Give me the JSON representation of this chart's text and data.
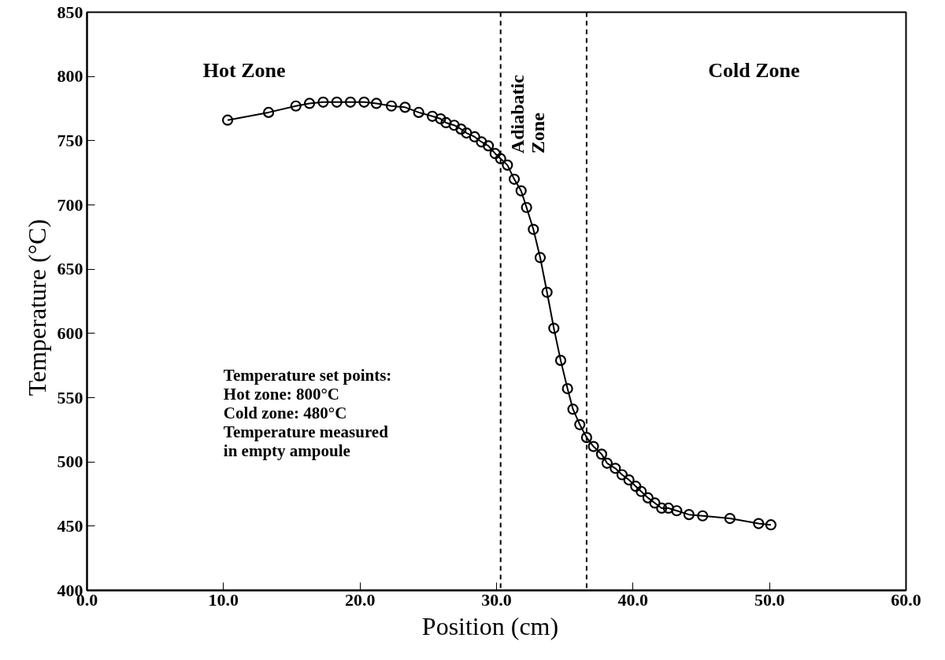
{
  "chart_data": {
    "type": "line",
    "xlabel": "Position   (cm)",
    "ylabel": "Temperature   (°C)",
    "x": [
      10.3,
      13.3,
      15.3,
      16.3,
      17.3,
      18.3,
      19.3,
      20.3,
      21.2,
      22.3,
      23.3,
      24.3,
      25.3,
      25.9,
      26.3,
      26.9,
      27.4,
      27.8,
      28.4,
      28.9,
      29.4,
      29.9,
      30.3,
      30.8,
      31.3,
      31.8,
      32.2,
      32.7,
      33.2,
      33.7,
      34.2,
      34.7,
      35.2,
      35.6,
      36.1,
      36.6,
      37.1,
      37.7,
      38.1,
      38.7,
      39.2,
      39.7,
      40.2,
      40.6,
      41.1,
      41.6,
      42.1,
      42.6,
      43.2,
      44.1,
      45.1,
      47.1,
      49.2,
      50.1
    ],
    "series": [
      {
        "color": "#000000",
        "values": [
          766,
          772,
          777,
          779,
          780,
          780,
          780,
          780,
          779,
          777,
          776,
          772,
          769,
          767,
          764,
          762,
          759,
          756,
          753,
          749,
          746,
          740,
          736,
          731,
          720,
          711,
          698,
          681,
          659,
          632,
          604,
          579,
          557,
          541,
          529,
          519,
          512,
          506,
          499,
          495,
          490,
          486,
          481,
          477,
          472,
          468,
          464,
          464,
          462,
          459,
          458,
          456,
          452,
          451
        ]
      }
    ],
    "marker": "circle",
    "line_style": "solid",
    "grid": false,
    "xlim": [
      0,
      60
    ],
    "ylim": [
      400,
      850
    ],
    "xticks": [
      {
        "value": 0,
        "label": "0.0"
      },
      {
        "value": 10,
        "label": "10.0"
      },
      {
        "value": 20,
        "label": "20.0"
      },
      {
        "value": 30,
        "label": "30.0"
      },
      {
        "value": 40,
        "label": "40.0"
      },
      {
        "value": 50,
        "label": "50.0"
      },
      {
        "value": 60,
        "label": "60.0"
      }
    ],
    "yticks": [
      400,
      450,
      500,
      550,
      600,
      650,
      700,
      750,
      800,
      850
    ],
    "ref_lines": [
      {
        "axis": "x",
        "value": 30.3,
        "line_style": "dashed",
        "color": "#000000"
      },
      {
        "axis": "x",
        "value": 36.6,
        "line_style": "dashed",
        "color": "#000000"
      }
    ],
    "annotations": [
      "Hot Zone",
      "Adiabatic\nZone",
      "Cold Zone",
      "Temperature set points:\n  Hot zone: 800°C\n  Cold zone: 480°C\nTemperature measured\n  in empty ampoule"
    ]
  }
}
